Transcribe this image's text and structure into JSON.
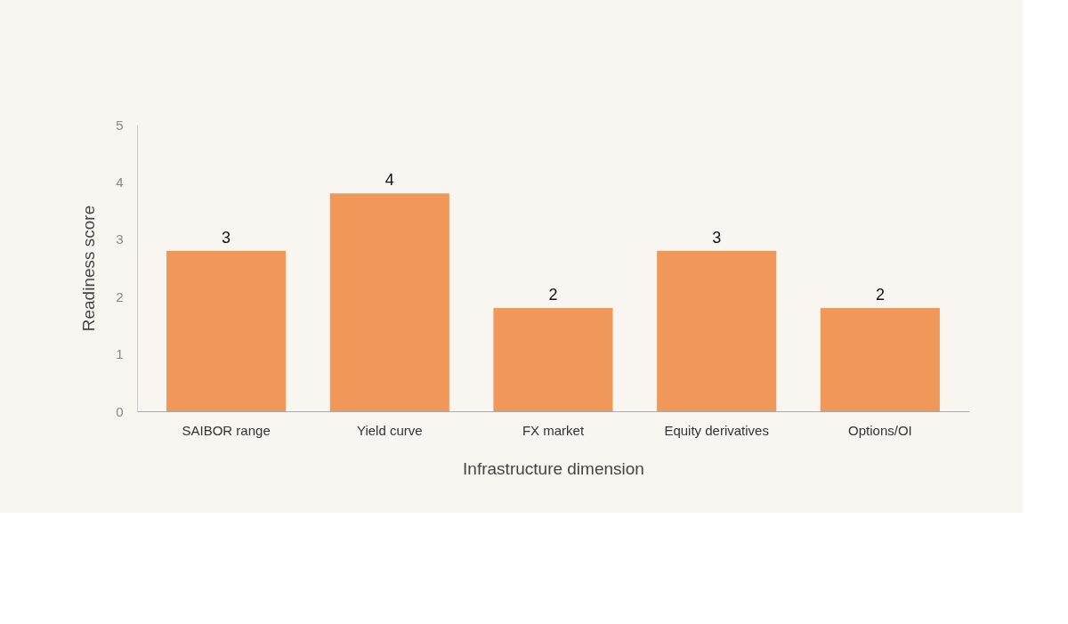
{
  "chart_data": {
    "type": "bar",
    "xlabel": "Infrastructure dimension",
    "ylabel": "Readiness score",
    "categories": [
      "SAIBOR range",
      "Yield curve",
      "FX market",
      "Equity derivatives",
      "Options/OI"
    ],
    "values": [
      2.8,
      3.8,
      1.8,
      2.8,
      1.8
    ],
    "value_labels": [
      "3",
      "4",
      "2",
      "3",
      "2"
    ],
    "color": "#f0985a",
    "ylim": [
      0,
      5
    ],
    "yticks": [
      0,
      1,
      2,
      3,
      4,
      5
    ],
    "grid": false
  }
}
